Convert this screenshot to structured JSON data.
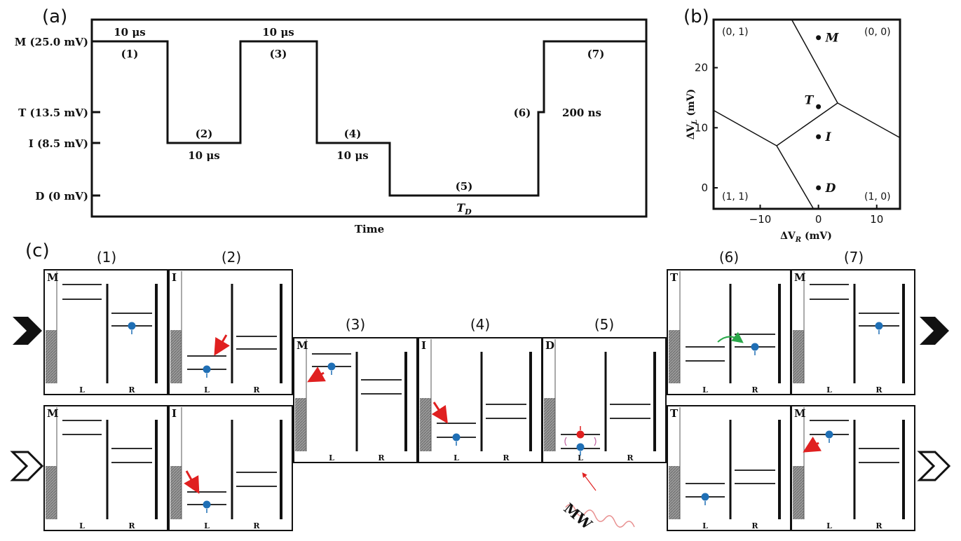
{
  "panel_a": {
    "label": "(a)",
    "levels": [
      {
        "key": "M",
        "text": "M (25.0 mV)"
      },
      {
        "key": "T",
        "text": "T (13.5 mV)"
      },
      {
        "key": "I",
        "text": "I (8.5 mV)"
      },
      {
        "key": "D",
        "text": "D (0 mV)"
      }
    ],
    "xlabel": "Time",
    "durations": [
      "10 μs",
      "10 μs",
      "10 μs",
      "10 μs",
      "200 ns"
    ],
    "steps": [
      "(1)",
      "(2)",
      "(3)",
      "(4)",
      "(5)",
      "(6)",
      "(7)"
    ],
    "td_label": "T",
    "td_sub": "D"
  },
  "panel_b": {
    "label": "(b)",
    "xlabel": "ΔV",
    "xlabel_sub": "R",
    "xlabel_unit": " (mV)",
    "ylabel": "ΔV",
    "ylabel_sub": "L",
    "ylabel_unit": " (mV)",
    "xticks": [
      "−10",
      "0",
      "10"
    ],
    "yticks": [
      "0",
      "10",
      "20"
    ],
    "regions": [
      "(0, 1)",
      "(0, 0)",
      "(1, 1)",
      "(1, 0)"
    ],
    "points": [
      {
        "name": "M",
        "x": 0,
        "y": 25
      },
      {
        "name": "T",
        "x": 0,
        "y": 13.5
      },
      {
        "name": "I",
        "x": 0,
        "y": 8.5
      },
      {
        "name": "D",
        "x": 0,
        "y": 0
      }
    ]
  },
  "panel_c": {
    "label": "(c)",
    "steps": [
      "(1)",
      "(2)",
      "(3)",
      "(4)",
      "(5)",
      "(6)",
      "(7)"
    ],
    "box_letters": [
      "M",
      "I",
      "M",
      "I",
      "D",
      "T",
      "M"
    ],
    "L": "L",
    "R": "R",
    "mw": "MW"
  },
  "colors": {
    "blue": "#1f6fb5",
    "red": "#e02020",
    "green": "#2aa84a",
    "hatch": "#8a8a8a"
  }
}
